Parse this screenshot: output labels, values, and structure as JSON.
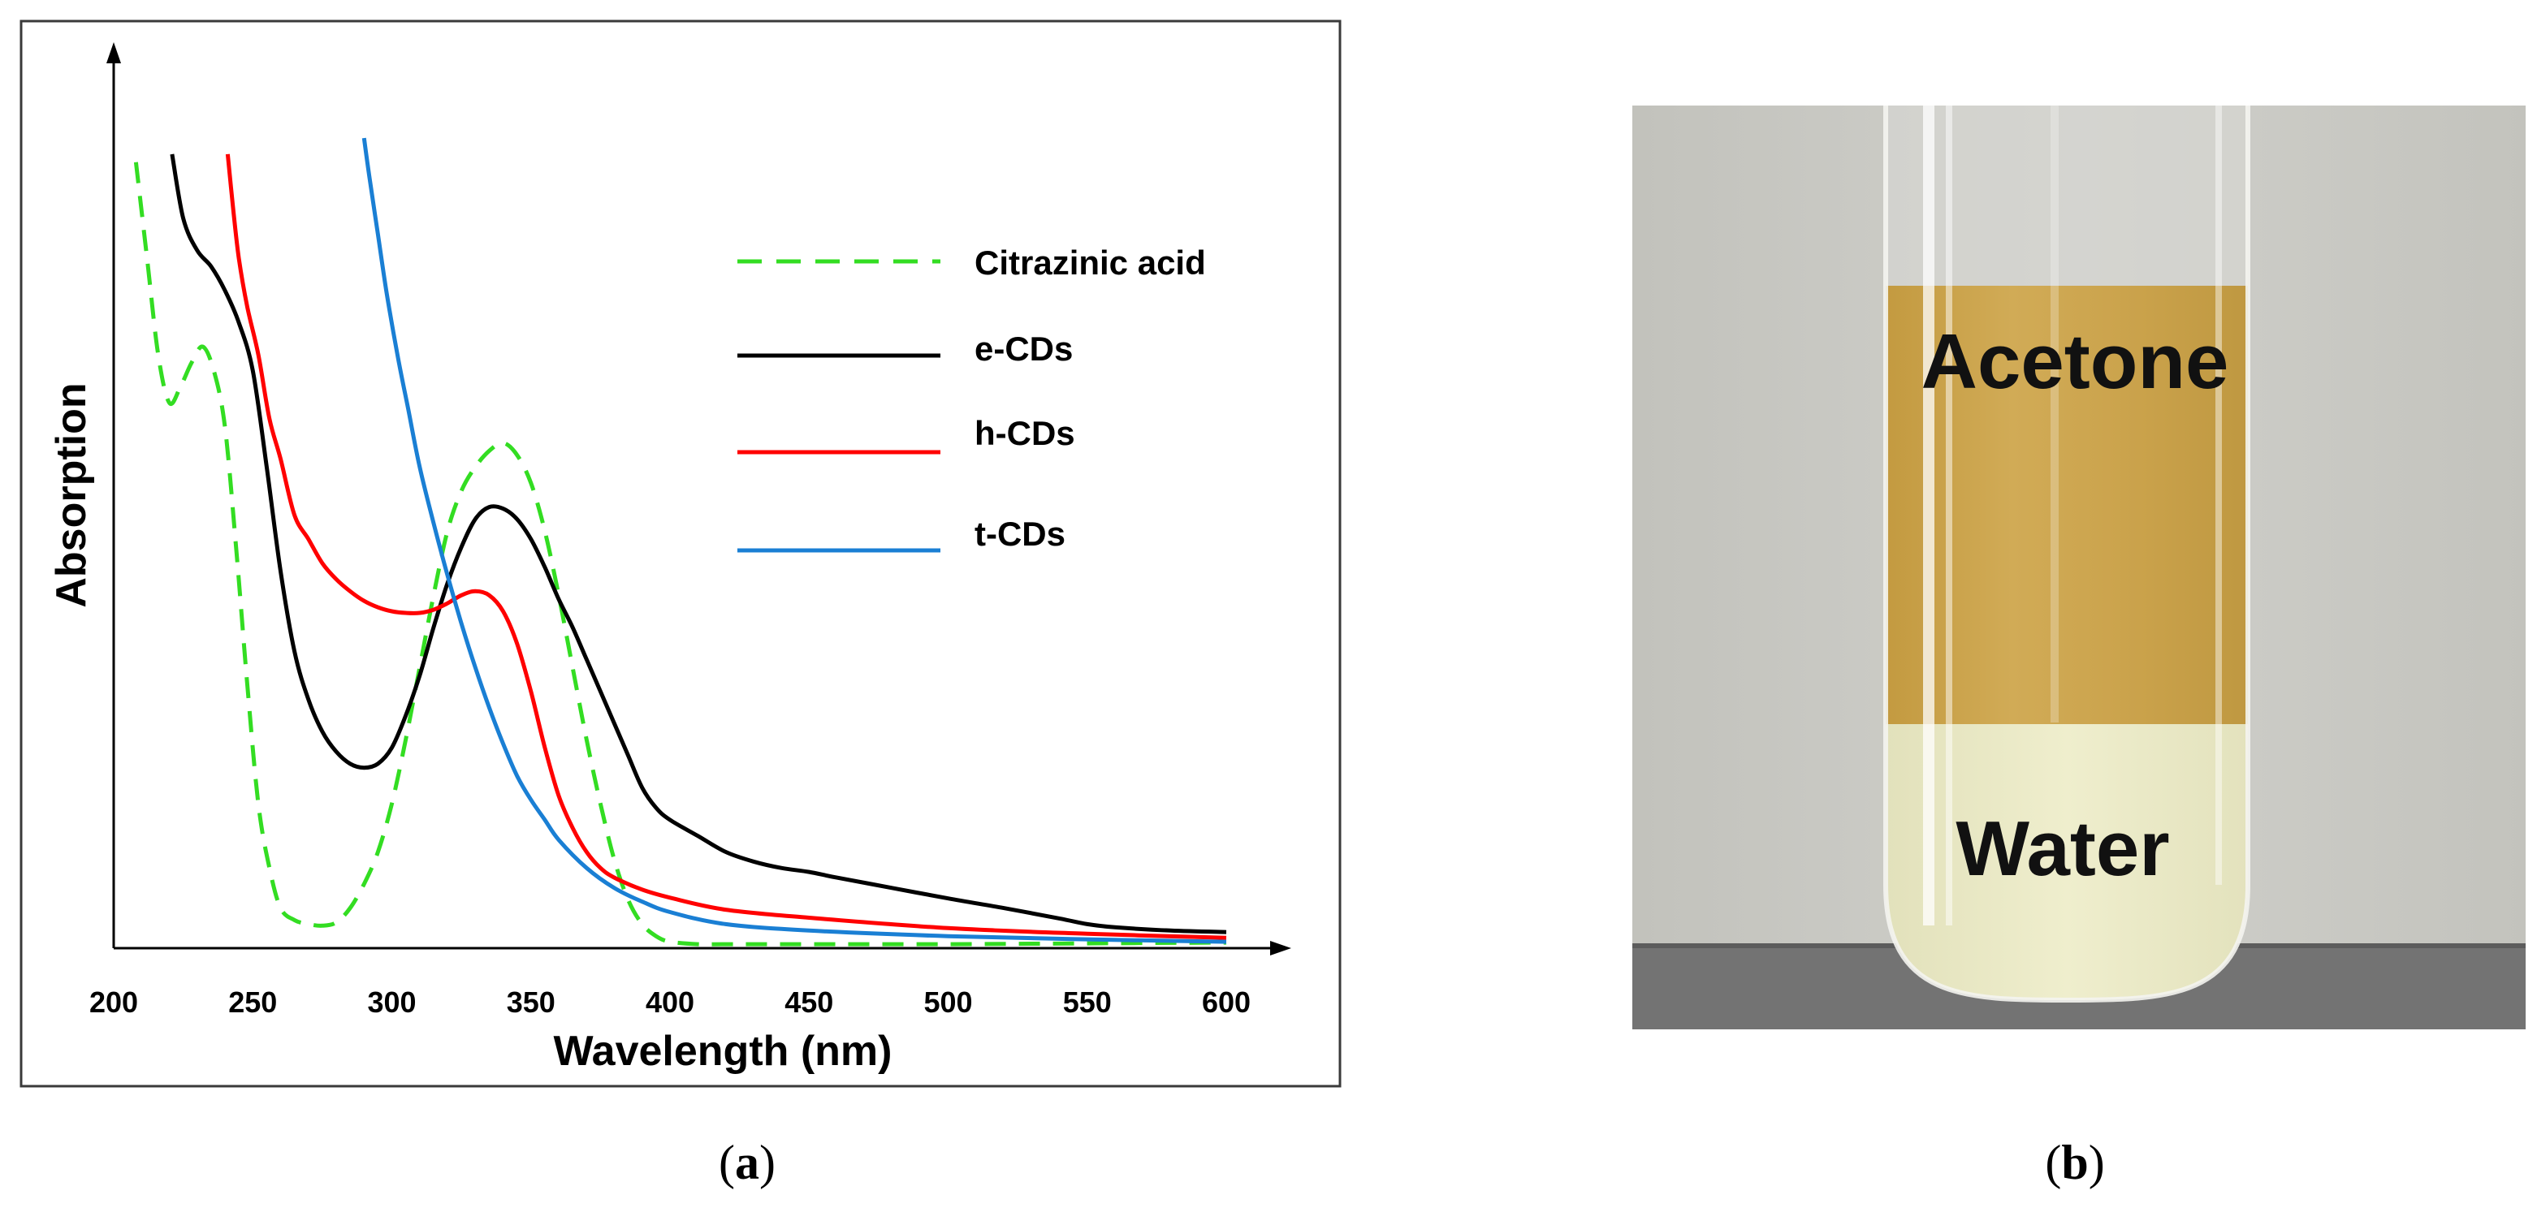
{
  "panel_a": {
    "caption_open": "(",
    "caption_letter": "a",
    "caption_close": ")"
  },
  "panel_b": {
    "caption_open": "(",
    "caption_letter": "b",
    "caption_close": ")",
    "labels": {
      "top_layer": "Acetone",
      "bottom_layer": "Water"
    },
    "colors": {
      "background": "#c7c7c1",
      "acetone": "#c9a14a",
      "water": "#e9e8c4",
      "shelf": "#707070"
    }
  },
  "chart_data": {
    "type": "line",
    "title": "",
    "xlabel": "Wavelength (nm)",
    "ylabel": "Absorption",
    "xlim": [
      200,
      620
    ],
    "ylim": [
      0,
      1.0
    ],
    "x_ticks": [
      "200",
      "250",
      "300",
      "350",
      "400",
      "450",
      "500",
      "550",
      "600"
    ],
    "y_ticks": [],
    "grid": false,
    "legend_position": "top-right",
    "series": [
      {
        "name": "Citrazinic acid",
        "color": "#33dd22",
        "dash": "dashed",
        "x": [
          208,
          212,
          216,
          220,
          224,
          228,
          232,
          236,
          240,
          244,
          248,
          252,
          256,
          260,
          265,
          270,
          275,
          280,
          285,
          290,
          295,
          300,
          305,
          310,
          315,
          320,
          325,
          330,
          335,
          340,
          345,
          350,
          355,
          360,
          365,
          370,
          375,
          380,
          385,
          390,
          395,
          400,
          410,
          420,
          450,
          500,
          550,
          600
        ],
        "y": [
          0.98,
          0.86,
          0.74,
          0.68,
          0.7,
          0.73,
          0.75,
          0.72,
          0.65,
          0.5,
          0.33,
          0.18,
          0.1,
          0.05,
          0.035,
          0.03,
          0.028,
          0.032,
          0.05,
          0.08,
          0.12,
          0.18,
          0.26,
          0.35,
          0.44,
          0.52,
          0.57,
          0.6,
          0.62,
          0.63,
          0.615,
          0.58,
          0.52,
          0.44,
          0.35,
          0.26,
          0.18,
          0.11,
          0.06,
          0.03,
          0.015,
          0.008,
          0.005,
          0.005,
          0.005,
          0.005,
          0.006,
          0.007
        ]
      },
      {
        "name": "e-CDs",
        "color": "#000000",
        "dash": "solid",
        "x": [
          221,
          225,
          230,
          235,
          240,
          245,
          250,
          255,
          260,
          265,
          270,
          275,
          280,
          285,
          290,
          295,
          300,
          305,
          310,
          315,
          320,
          325,
          330,
          335,
          340,
          345,
          350,
          355,
          360,
          365,
          370,
          375,
          380,
          385,
          390,
          395,
          400,
          410,
          420,
          430,
          440,
          450,
          460,
          480,
          500,
          520,
          540,
          550,
          560,
          580,
          600
        ],
        "y": [
          0.99,
          0.91,
          0.87,
          0.85,
          0.82,
          0.78,
          0.72,
          0.6,
          0.47,
          0.37,
          0.31,
          0.27,
          0.245,
          0.23,
          0.225,
          0.23,
          0.25,
          0.29,
          0.34,
          0.4,
          0.455,
          0.5,
          0.535,
          0.55,
          0.548,
          0.535,
          0.51,
          0.475,
          0.435,
          0.4,
          0.36,
          0.32,
          0.28,
          0.24,
          0.2,
          0.175,
          0.16,
          0.14,
          0.12,
          0.108,
          0.1,
          0.095,
          0.088,
          0.075,
          0.062,
          0.05,
          0.037,
          0.03,
          0.026,
          0.022,
          0.02
        ]
      },
      {
        "name": "h-CDs",
        "color": "#ff0000",
        "dash": "solid",
        "x": [
          241,
          243,
          245,
          248,
          252,
          256,
          260,
          265,
          270,
          275,
          280,
          285,
          290,
          295,
          300,
          305,
          310,
          315,
          320,
          325,
          330,
          335,
          340,
          345,
          350,
          355,
          360,
          365,
          370,
          375,
          380,
          390,
          400,
          420,
          450,
          500,
          550,
          600
        ],
        "y": [
          0.99,
          0.92,
          0.86,
          0.8,
          0.74,
          0.66,
          0.61,
          0.54,
          0.51,
          0.48,
          0.46,
          0.445,
          0.433,
          0.425,
          0.42,
          0.418,
          0.418,
          0.422,
          0.43,
          0.44,
          0.445,
          0.44,
          0.42,
          0.38,
          0.32,
          0.25,
          0.19,
          0.15,
          0.12,
          0.1,
          0.088,
          0.073,
          0.063,
          0.048,
          0.038,
          0.025,
          0.018,
          0.013
        ]
      },
      {
        "name": "t-CDs",
        "color": "#1a7fd4",
        "dash": "solid",
        "x": [
          290,
          292,
          295,
          298,
          302,
          306,
          310,
          315,
          320,
          325,
          330,
          335,
          340,
          345,
          350,
          355,
          360,
          370,
          380,
          390,
          400,
          420,
          450,
          500,
          550,
          600
        ],
        "y": [
          1.01,
          0.96,
          0.89,
          0.82,
          0.74,
          0.67,
          0.6,
          0.53,
          0.465,
          0.405,
          0.35,
          0.3,
          0.255,
          0.215,
          0.185,
          0.16,
          0.135,
          0.1,
          0.075,
          0.058,
          0.045,
          0.03,
          0.022,
          0.015,
          0.011,
          0.008
        ]
      }
    ]
  }
}
